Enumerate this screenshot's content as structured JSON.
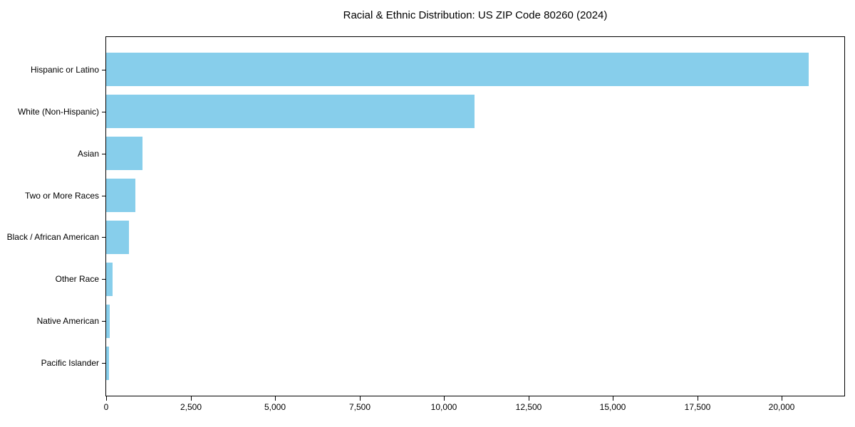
{
  "title": "Racial & Ethnic Distribution: US ZIP Code 80260 (2024)",
  "colors": {
    "bar": "#87CEEB",
    "axis": "#000000",
    "text": "#000000",
    "background": "#FFFFFF"
  },
  "chart_data": {
    "type": "bar",
    "orientation": "horizontal",
    "title": "Racial & Ethnic Distribution: US ZIP Code 80260 (2024)",
    "xlabel": "",
    "ylabel": "",
    "categories": [
      "Hispanic or Latino",
      "White (Non-Hispanic)",
      "Asian",
      "Two or More Races",
      "Black / African American",
      "Other Race",
      "Native American",
      "Pacific Islander"
    ],
    "values": [
      20800,
      10900,
      1080,
      870,
      670,
      180,
      110,
      80
    ],
    "xlim": [
      0,
      21850
    ],
    "xticks": [
      0,
      2500,
      5000,
      7500,
      10000,
      12500,
      15000,
      17500,
      20000
    ],
    "xtick_labels": [
      "0",
      "2,500",
      "5,000",
      "7,500",
      "10,000",
      "12,500",
      "15,000",
      "17,500",
      "20,000"
    ],
    "grid": false,
    "legend": null,
    "bar_color": "#87CEEB"
  }
}
